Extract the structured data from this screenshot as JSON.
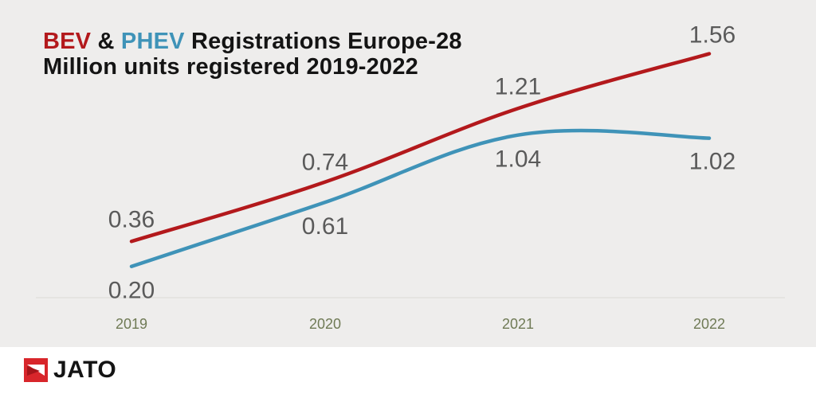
{
  "title": {
    "bev": "BEV",
    "amp": " & ",
    "phev": "PHEV",
    "rest": " Registrations Europe-28",
    "line2": "Million units registered 2019-2022"
  },
  "brand": {
    "name": "JATO",
    "icon": "jato-logo-icon"
  },
  "colors": {
    "bev": "#b3191c",
    "phev": "#3f93b8",
    "background": "#eeedec",
    "axis_text": "#6f7a55"
  },
  "chart_data": {
    "type": "line",
    "title": "BEV & PHEV Registrations Europe-28",
    "subtitle": "Million units registered 2019-2022",
    "xlabel": "",
    "ylabel": "Million units",
    "categories": [
      "2019",
      "2020",
      "2021",
      "2022"
    ],
    "ylim": [
      0,
      1.7
    ],
    "grid": false,
    "series": [
      {
        "name": "BEV",
        "color": "#b3191c",
        "values": [
          0.36,
          0.74,
          1.21,
          1.56
        ],
        "labels": [
          "0.36",
          "0.74",
          "1.21",
          "1.56"
        ]
      },
      {
        "name": "PHEV",
        "color": "#3f93b8",
        "values": [
          0.2,
          0.61,
          1.04,
          1.02
        ],
        "labels": [
          "0.20",
          "0.61",
          "1.04",
          "1.02"
        ]
      }
    ]
  }
}
